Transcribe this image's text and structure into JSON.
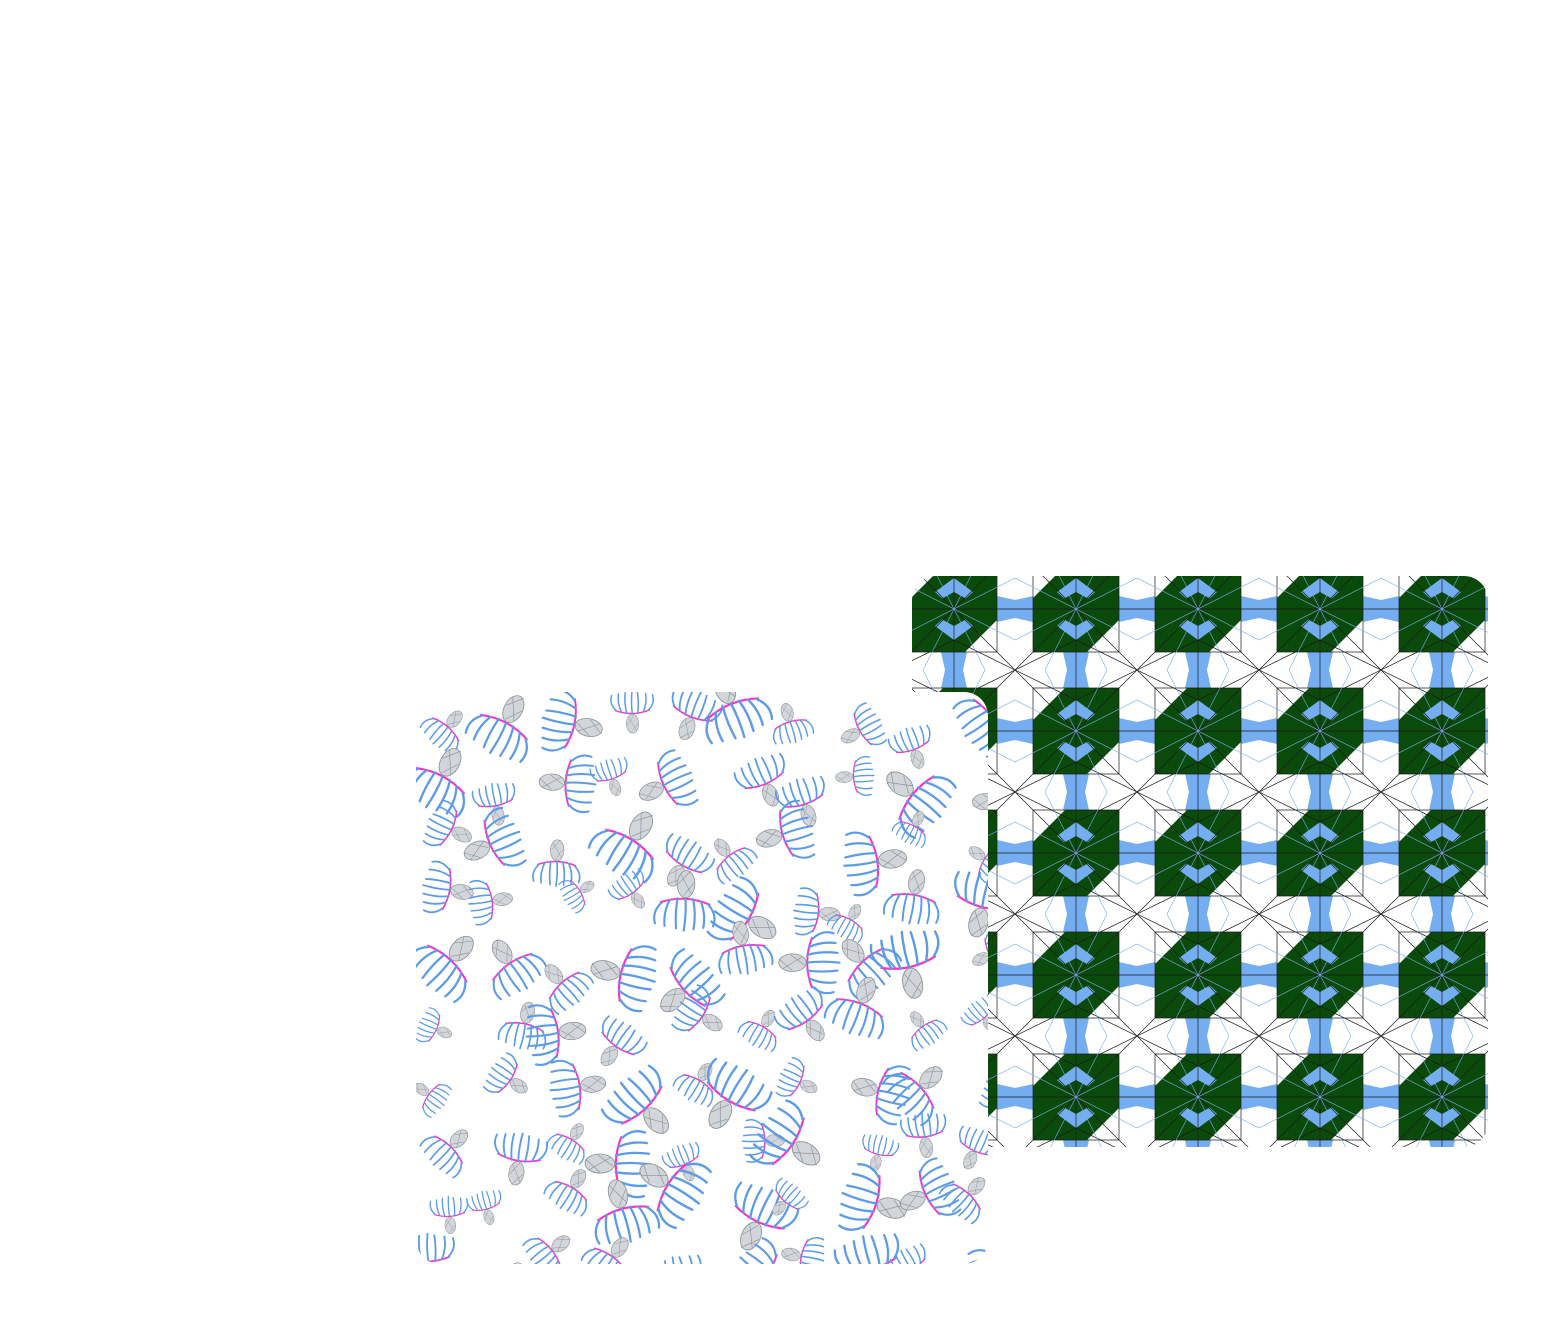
{
  "canvas": {
    "background": "#ffffff"
  },
  "tiles": [
    {
      "id": "geometric",
      "pattern": "geometric-star-lattice",
      "colors": {
        "primary": "#0a4a0a",
        "accent": "#74aef0",
        "line": "#1a1a1a",
        "thin_line": "#74aef0",
        "ground": "#ffffff"
      }
    },
    {
      "id": "floral",
      "pattern": "scattered-floral-sprigs",
      "colors": {
        "petal": "#5b9be8",
        "stem": "#ff2fc8",
        "bud_fill": "#d2d6da",
        "bud_line": "#8a9096",
        "ground": "#ffffff"
      }
    }
  ]
}
